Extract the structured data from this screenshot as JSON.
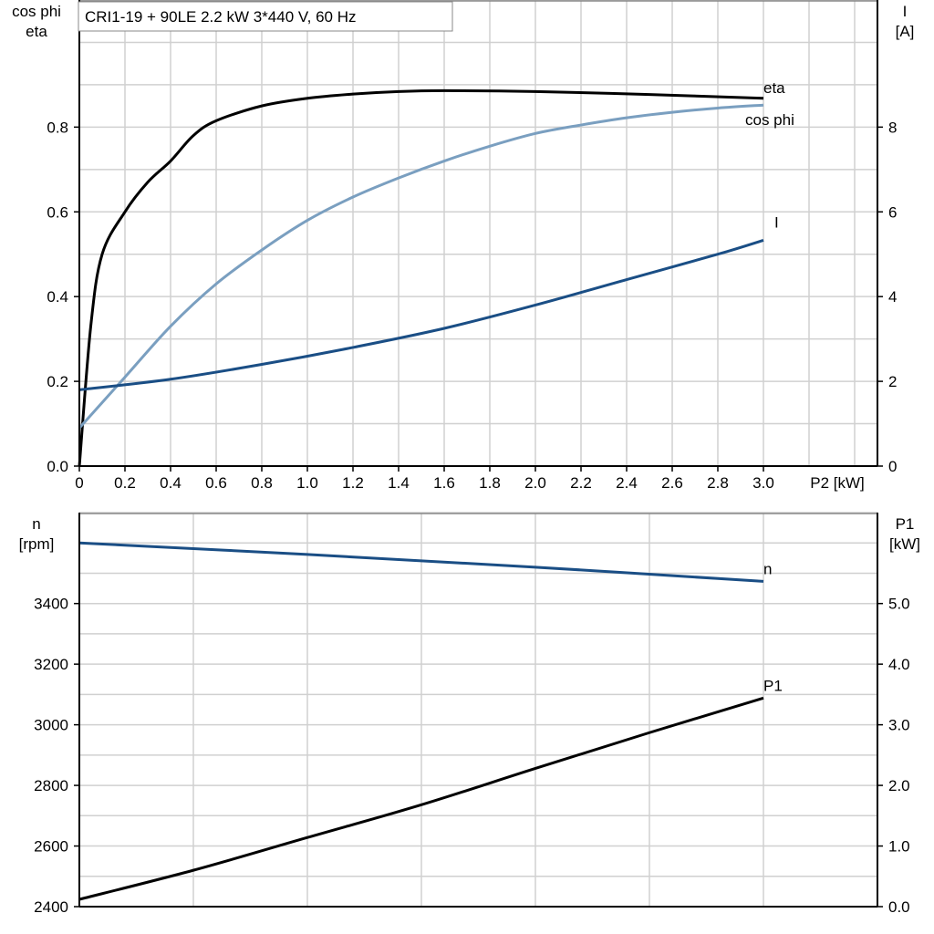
{
  "title": "CRI1-19 + 90LE   2.2 kW   3*440 V, 60 Hz",
  "chart_data": [
    {
      "type": "line",
      "xlabel": "P2 [kW]",
      "ylabel": [
        "cos phi",
        "eta"
      ],
      "y2label": [
        "I",
        "[A]"
      ],
      "xlim": [
        0,
        3.5
      ],
      "ylim": [
        0,
        1.1
      ],
      "y2lim": [
        0,
        11
      ],
      "xticks": [
        "0",
        "0.2",
        "0.4",
        "0.6",
        "0.8",
        "1.0",
        "1.2",
        "1.4",
        "1.6",
        "1.8",
        "2.0",
        "2.2",
        "2.4",
        "2.6",
        "2.8",
        "3.0"
      ],
      "yticks": [
        "0.0",
        "0.2",
        "0.4",
        "0.6",
        "0.8"
      ],
      "y2ticks": [
        "0",
        "2",
        "4",
        "6",
        "8"
      ],
      "grid": true,
      "series": [
        {
          "name": "eta",
          "axis": "left",
          "color": "#000000",
          "x": [
            0,
            0.05,
            0.1,
            0.2,
            0.3,
            0.4,
            0.5,
            0.6,
            0.8,
            1.0,
            1.2,
            1.4,
            1.6,
            2.0,
            2.5,
            3.0
          ],
          "y": [
            0,
            0.33,
            0.5,
            0.6,
            0.67,
            0.72,
            0.78,
            0.815,
            0.85,
            0.868,
            0.878,
            0.884,
            0.886,
            0.884,
            0.877,
            0.868
          ]
        },
        {
          "name": "cos phi",
          "axis": "left",
          "color": "#7a9fc0",
          "x": [
            0,
            0.2,
            0.4,
            0.6,
            0.8,
            1.0,
            1.2,
            1.4,
            1.6,
            1.8,
            2.0,
            2.2,
            2.4,
            2.6,
            2.8,
            3.0
          ],
          "y": [
            0.09,
            0.21,
            0.33,
            0.43,
            0.51,
            0.58,
            0.635,
            0.68,
            0.72,
            0.755,
            0.785,
            0.805,
            0.822,
            0.835,
            0.845,
            0.852
          ]
        },
        {
          "name": "I",
          "axis": "right",
          "color": "#1a4e85",
          "x": [
            0,
            0.4,
            0.8,
            1.2,
            1.6,
            2.0,
            2.4,
            2.8,
            3.0
          ],
          "y": [
            1.8,
            2.05,
            2.4,
            2.8,
            3.25,
            3.8,
            4.4,
            5.0,
            5.33
          ]
        }
      ]
    },
    {
      "type": "line",
      "xlim": [
        0,
        3.5
      ],
      "ylabel": [
        "n",
        "[rpm]"
      ],
      "y2label": [
        "P1",
        "[kW]"
      ],
      "ylim": [
        2400,
        3700
      ],
      "y2lim": [
        0,
        6.5
      ],
      "yticks": [
        "2400",
        "2600",
        "2800",
        "3000",
        "3200",
        "3400"
      ],
      "y2ticks": [
        "0.0",
        "1.0",
        "2.0",
        "3.0",
        "4.0",
        "5.0"
      ],
      "grid": true,
      "series": [
        {
          "name": "n",
          "axis": "left",
          "color": "#1a4e85",
          "x": [
            0,
            1.0,
            2.0,
            3.0
          ],
          "y": [
            3600,
            3562,
            3520,
            3473
          ]
        },
        {
          "name": "P1",
          "axis": "right",
          "color": "#000000",
          "x": [
            0,
            0.5,
            1.0,
            1.5,
            2.0,
            2.5,
            3.0
          ],
          "y": [
            0.12,
            0.6,
            1.14,
            1.68,
            2.28,
            2.87,
            3.44
          ]
        }
      ]
    }
  ]
}
